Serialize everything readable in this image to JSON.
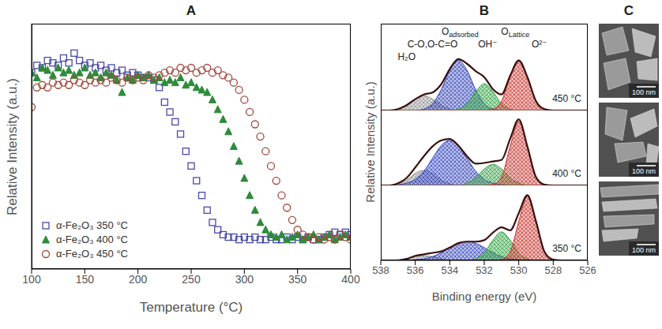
{
  "chart_data": [
    {
      "type": "scatter",
      "title": "A",
      "x_label": "Temperature (°C)",
      "y_label": "Relative Intensity (a.u.)",
      "x": [
        100,
        105,
        110,
        115,
        120,
        125,
        130,
        135,
        140,
        145,
        150,
        155,
        160,
        165,
        170,
        175,
        180,
        185,
        190,
        195,
        200,
        205,
        210,
        215,
        220,
        225,
        230,
        235,
        240,
        245,
        250,
        255,
        260,
        265,
        270,
        275,
        280,
        285,
        290,
        295,
        300,
        305,
        310,
        315,
        320,
        325,
        330,
        335,
        340,
        345,
        350,
        355,
        360,
        365,
        370,
        375,
        380,
        385,
        390,
        395,
        400
      ],
      "xlim": [
        100,
        400
      ],
      "xticks": [
        100,
        150,
        200,
        250,
        300,
        350,
        400
      ],
      "ylim": [
        0,
        1
      ],
      "tick_labels": "x",
      "legend": "lower left",
      "series": [
        {
          "name": "α-Fe₂O₃ 350 °C",
          "color": "#4a4aa8",
          "marker": "open_square",
          "values": [
            0.8,
            0.83,
            0.82,
            0.85,
            0.84,
            0.83,
            0.86,
            0.84,
            0.88,
            0.85,
            0.83,
            0.84,
            0.82,
            0.83,
            0.81,
            0.82,
            0.8,
            0.81,
            0.79,
            0.8,
            0.79,
            0.78,
            0.78,
            0.77,
            0.74,
            0.68,
            0.64,
            0.6,
            0.55,
            0.48,
            0.42,
            0.36,
            0.3,
            0.24,
            0.19,
            0.16,
            0.14,
            0.13,
            0.13,
            0.12,
            0.13,
            0.12,
            0.13,
            0.12,
            0.12,
            0.13,
            0.12,
            0.12,
            0.13,
            0.12,
            0.13,
            0.12,
            0.13,
            0.12,
            0.12,
            0.13,
            0.14,
            0.15,
            0.14,
            0.15,
            0.14
          ]
        },
        {
          "name": "α-Fe₂O₃ 400 °C",
          "color": "#2e8b3a",
          "marker": "triangle",
          "values": [
            0.8,
            0.78,
            0.82,
            0.81,
            0.79,
            0.82,
            0.8,
            0.81,
            0.79,
            0.8,
            0.82,
            0.79,
            0.8,
            0.78,
            0.8,
            0.79,
            0.77,
            0.72,
            0.78,
            0.77,
            0.79,
            0.78,
            0.79,
            0.77,
            0.78,
            0.76,
            0.77,
            0.76,
            0.78,
            0.75,
            0.76,
            0.74,
            0.73,
            0.72,
            0.69,
            0.65,
            0.61,
            0.56,
            0.5,
            0.44,
            0.37,
            0.3,
            0.24,
            0.19,
            0.16,
            0.14,
            0.13,
            0.14,
            0.12,
            0.13,
            0.14,
            0.12,
            0.13,
            0.14,
            0.12,
            0.13,
            0.14,
            0.12,
            0.13,
            0.14,
            0.13
          ]
        },
        {
          "name": "α-Fe₂O₃ 450 °C",
          "color": "#a0483c",
          "marker": "open_circle",
          "values": [
            0.66,
            0.74,
            0.75,
            0.74,
            0.76,
            0.75,
            0.76,
            0.75,
            0.77,
            0.76,
            0.75,
            0.77,
            0.76,
            0.77,
            0.76,
            0.78,
            0.77,
            0.76,
            0.78,
            0.77,
            0.78,
            0.77,
            0.79,
            0.78,
            0.79,
            0.8,
            0.81,
            0.8,
            0.82,
            0.81,
            0.82,
            0.8,
            0.81,
            0.82,
            0.8,
            0.81,
            0.79,
            0.78,
            0.76,
            0.73,
            0.69,
            0.64,
            0.59,
            0.54,
            0.48,
            0.42,
            0.36,
            0.3,
            0.25,
            0.2,
            0.16,
            0.14,
            0.13,
            0.12,
            0.13,
            0.12,
            0.13,
            0.12,
            0.14,
            0.13,
            0.12
          ]
        }
      ]
    },
    {
      "type": "area",
      "title": "B",
      "x_label": "Binding energy (eV)",
      "y_label": "Relative Intensity (a.u.)",
      "x": [
        526,
        526.5,
        527,
        527.5,
        528,
        528.5,
        529,
        529.5,
        530,
        530.5,
        531,
        531.5,
        532,
        532.5,
        533,
        533.5,
        534,
        534.5,
        535,
        535.5,
        536,
        536.5,
        537,
        537.5,
        538
      ],
      "xlim": [
        538,
        526
      ],
      "xticks": [
        538,
        536,
        534,
        532,
        530,
        528,
        526
      ],
      "tick_labels": "x",
      "spectra": [
        {
          "label": "450 °C",
          "ylim": [
            0,
            1.3
          ],
          "annotations": [
            {
              "text": "H₂O",
              "x": 536.5
            },
            {
              "text": "C-O,O-C=O",
              "x": 535.0
            },
            {
              "text": "O",
              "sub": "adsorbed",
              "x": 533.4
            },
            {
              "text": "OH⁻",
              "x": 531.8
            },
            {
              "text": "O",
              "sub": "Lattice",
              "x": 530.2
            },
            {
              "text": "O²⁻",
              "x": 528.8
            }
          ],
          "series": [
            {
              "type": "area",
              "color": "#8c8c8c",
              "values": [
                0,
                0,
                0,
                0,
                0,
                0,
                0,
                0,
                0,
                0,
                0,
                0,
                0,
                0,
                0,
                0,
                0.02,
                0.08,
                0.17,
                0.22,
                0.17,
                0.08,
                0.02,
                0,
                0
              ]
            },
            {
              "type": "area",
              "color": "#2f3fb8",
              "values": [
                0,
                0,
                0,
                0,
                0,
                0,
                0,
                0,
                0,
                0,
                0,
                0.02,
                0.1,
                0.31,
                0.6,
                0.75,
                0.6,
                0.31,
                0.1,
                0.02,
                0,
                0,
                0,
                0,
                0
              ]
            },
            {
              "type": "area",
              "color": "#2e9e3e",
              "values": [
                0,
                0,
                0,
                0,
                0,
                0,
                0,
                0,
                0,
                0.02,
                0.1,
                0.28,
                0.4,
                0.28,
                0.1,
                0.02,
                0,
                0,
                0,
                0,
                0,
                0,
                0,
                0,
                0
              ]
            },
            {
              "type": "area",
              "color": "#c8322c",
              "values": [
                0,
                0,
                0,
                0,
                0,
                0.02,
                0.14,
                0.5,
                0.75,
                0.5,
                0.14,
                0.02,
                0,
                0,
                0,
                0,
                0,
                0,
                0,
                0,
                0,
                0,
                0,
                0,
                0
              ]
            },
            {
              "type": "line",
              "color": "#3a1010",
              "values": [
                0,
                0,
                0,
                0,
                0,
                0.02,
                0.14,
                0.5,
                0.75,
                0.52,
                0.24,
                0.32,
                0.5,
                0.59,
                0.7,
                0.77,
                0.62,
                0.39,
                0.27,
                0.24,
                0.17,
                0.08,
                0.02,
                0,
                0
              ]
            }
          ]
        },
        {
          "label": "400 °C",
          "ylim": [
            0,
            1
          ],
          "series": [
            {
              "type": "area",
              "color": "#8c8c8c",
              "values": [
                0,
                0,
                0,
                0,
                0,
                0,
                0,
                0,
                0,
                0,
                0,
                0,
                0,
                0,
                0,
                0,
                0.02,
                0.07,
                0.16,
                0.2,
                0.16,
                0.07,
                0.02,
                0,
                0
              ]
            },
            {
              "type": "area",
              "color": "#2f3fb8",
              "values": [
                0,
                0,
                0,
                0,
                0,
                0,
                0,
                0,
                0,
                0,
                0.01,
                0.03,
                0.08,
                0.19,
                0.36,
                0.53,
                0.6,
                0.53,
                0.36,
                0.19,
                0.08,
                0.03,
                0.01,
                0,
                0
              ]
            },
            {
              "type": "area",
              "color": "#2e9e3e",
              "values": [
                0,
                0,
                0,
                0,
                0,
                0,
                0,
                0,
                0.03,
                0.1,
                0.22,
                0.28,
                0.22,
                0.1,
                0.03,
                0,
                0,
                0,
                0,
                0,
                0,
                0,
                0,
                0,
                0
              ]
            },
            {
              "type": "area",
              "color": "#c8322c",
              "values": [
                0,
                0,
                0,
                0,
                0,
                0.01,
                0.11,
                0.52,
                0.85,
                0.52,
                0.11,
                0.01,
                0,
                0,
                0,
                0,
                0,
                0,
                0,
                0,
                0,
                0,
                0,
                0,
                0
              ]
            },
            {
              "type": "line",
              "color": "#3a1010",
              "values": [
                0,
                0,
                0,
                0,
                0,
                0.01,
                0.11,
                0.52,
                0.88,
                0.62,
                0.34,
                0.32,
                0.3,
                0.29,
                0.39,
                0.53,
                0.62,
                0.6,
                0.52,
                0.39,
                0.24,
                0.1,
                0.03,
                0,
                0
              ]
            }
          ]
        },
        {
          "label": "350 °C",
          "ylim": [
            0,
            1
          ],
          "series": [
            {
              "type": "area",
              "color": "#8c8c8c",
              "values": [
                0,
                0,
                0,
                0,
                0,
                0,
                0,
                0,
                0,
                0,
                0,
                0,
                0,
                0,
                0,
                0,
                0,
                0.02,
                0.05,
                0.06,
                0.05,
                0.02,
                0,
                0,
                0
              ]
            },
            {
              "type": "area",
              "color": "#2f3fb8",
              "values": [
                0,
                0,
                0,
                0,
                0,
                0,
                0,
                0,
                0.01,
                0.02,
                0.05,
                0.1,
                0.17,
                0.23,
                0.25,
                0.23,
                0.17,
                0.1,
                0.05,
                0.02,
                0.01,
                0,
                0,
                0,
                0
              ]
            },
            {
              "type": "area",
              "color": "#2e9e3e",
              "values": [
                0,
                0,
                0,
                0,
                0,
                0,
                0,
                0.02,
                0.1,
                0.27,
                0.38,
                0.27,
                0.1,
                0.02,
                0,
                0,
                0,
                0,
                0,
                0,
                0,
                0,
                0,
                0,
                0
              ]
            },
            {
              "type": "area",
              "color": "#c8322c",
              "values": [
                0,
                0,
                0,
                0,
                0.01,
                0.11,
                0.52,
                0.85,
                0.52,
                0.11,
                0.01,
                0,
                0,
                0,
                0,
                0,
                0,
                0,
                0,
                0,
                0,
                0,
                0,
                0,
                0
              ]
            },
            {
              "type": "line",
              "color": "#3a1010",
              "values": [
                0,
                0,
                0,
                0,
                0.01,
                0.11,
                0.52,
                0.87,
                0.63,
                0.4,
                0.44,
                0.37,
                0.27,
                0.25,
                0.25,
                0.23,
                0.17,
                0.12,
                0.1,
                0.08,
                0.06,
                0.02,
                0,
                0,
                0
              ]
            }
          ]
        }
      ]
    }
  ],
  "panel_c": {
    "title": "C",
    "images": [
      {
        "scale_bar": "100 nm"
      },
      {
        "scale_bar": "100 nm"
      },
      {
        "scale_bar": "100 nm"
      }
    ]
  }
}
